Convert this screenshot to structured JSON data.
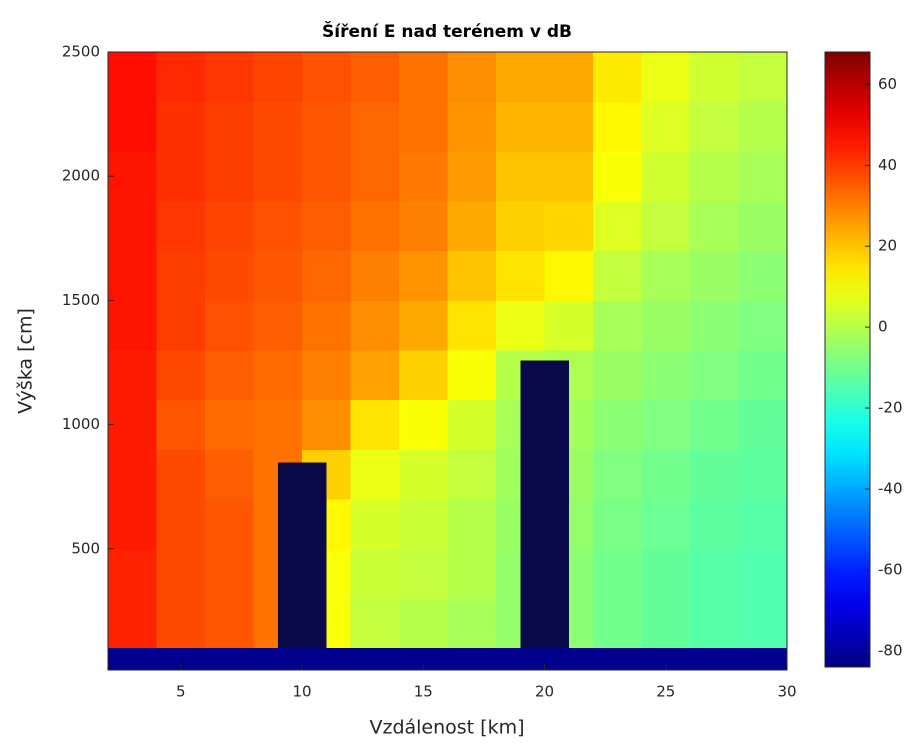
{
  "chart_data": {
    "type": "heatmap",
    "title": "Šíření E nad terénem v dB",
    "xlabel": "Vzdálenost [km]",
    "ylabel": "Výška [cm]",
    "xlim": [
      2,
      30
    ],
    "ylim": [
      12,
      2500
    ],
    "xticks": [
      5,
      10,
      15,
      20,
      25,
      30
    ],
    "yticks": [
      500,
      1000,
      1500,
      2000,
      2500
    ],
    "x": [
      3,
      5,
      7,
      9,
      11,
      13,
      15,
      17,
      19,
      21,
      23,
      25,
      27,
      29
    ],
    "y": [
      200,
      400,
      600,
      800,
      1000,
      1200,
      1400,
      1600,
      1800,
      2000,
      2200,
      2400
    ],
    "cell_width": 2,
    "cell_height": 200,
    "z": [
      [
        44,
        38,
        36,
        32,
        10,
        2,
        0,
        -2,
        -5,
        -6,
        -10,
        -12,
        -14,
        -15
      ],
      [
        44,
        38,
        36,
        32,
        10,
        3,
        2,
        0,
        -5,
        -6,
        -10,
        -12,
        -14,
        -15
      ],
      [
        45,
        38,
        36,
        32,
        12,
        5,
        3,
        0,
        -4,
        -5,
        -9,
        -11,
        -13,
        -14
      ],
      [
        45,
        38,
        35,
        32,
        18,
        8,
        5,
        2,
        -3,
        -4,
        -8,
        -10,
        -12,
        -13
      ],
      [
        45,
        36,
        33,
        32,
        28,
        15,
        10,
        5,
        -2,
        -3,
        -6,
        -8,
        -10,
        -12
      ],
      [
        45,
        38,
        35,
        33,
        30,
        25,
        18,
        10,
        0,
        -1,
        -4,
        -6,
        -8,
        -10
      ],
      [
        46,
        40,
        37,
        35,
        32,
        28,
        24,
        15,
        8,
        5,
        -2,
        -4,
        -6,
        -8
      ],
      [
        46,
        40,
        38,
        36,
        34,
        30,
        27,
        20,
        15,
        12,
        2,
        -2,
        -4,
        -6
      ],
      [
        46,
        41,
        39,
        37,
        35,
        32,
        30,
        24,
        18,
        17,
        6,
        2,
        -2,
        -4
      ],
      [
        46,
        42,
        40,
        38,
        36,
        34,
        31,
        26,
        20,
        20,
        10,
        4,
        0,
        -2
      ],
      [
        47,
        42,
        40,
        38,
        36,
        34,
        32,
        27,
        22,
        22,
        12,
        6,
        2,
        0
      ],
      [
        47,
        43,
        41,
        39,
        37,
        35,
        32,
        28,
        24,
        24,
        14,
        8,
        4,
        2
      ]
    ],
    "colormap": "jet",
    "clim": [
      -84,
      68
    ],
    "cticks": [
      -80,
      -60,
      -40,
      -20,
      0,
      20,
      40,
      60
    ],
    "ground": 100,
    "ground_color": "#00008f",
    "obstacles": [
      {
        "x": [
          9,
          11
        ],
        "height": 847
      },
      {
        "x": [
          19,
          21
        ],
        "height": 1258
      }
    ],
    "obstacle_color": "#0a0a4a"
  }
}
